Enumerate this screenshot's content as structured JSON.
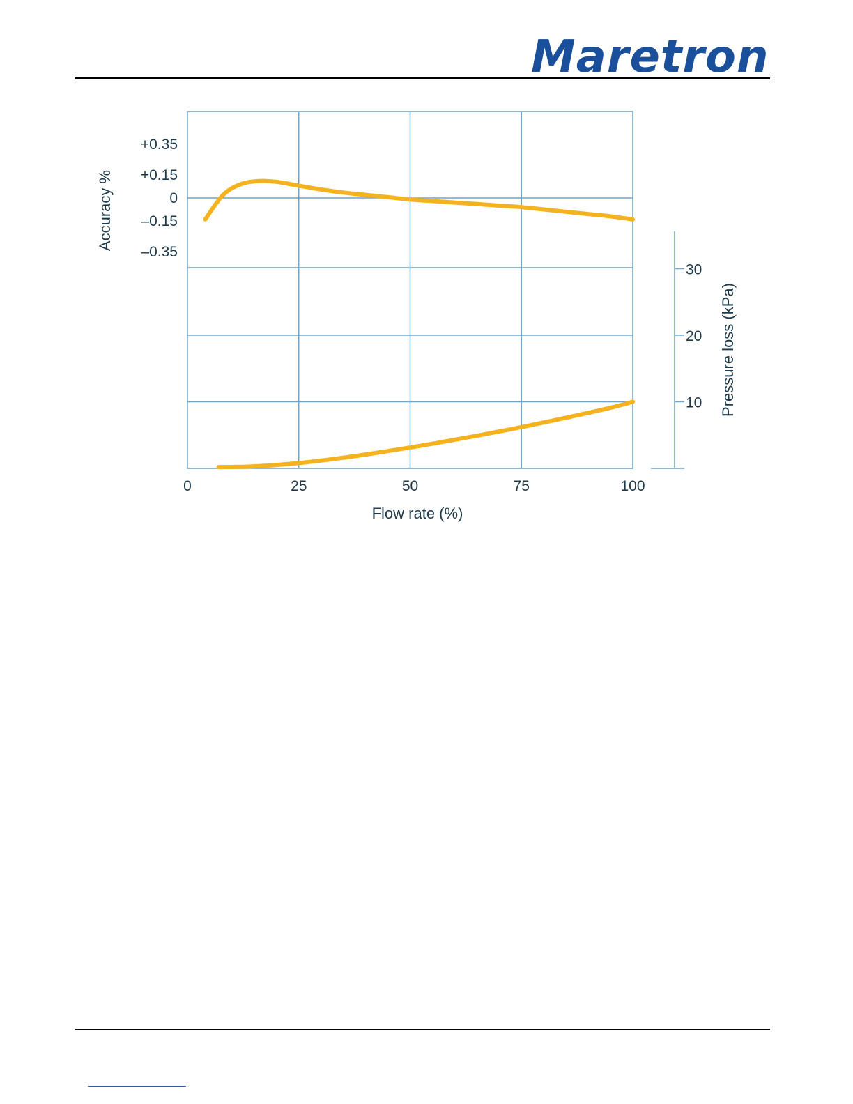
{
  "header": {
    "logo_text": "Maretron"
  },
  "chart_data": {
    "type": "line",
    "title": "",
    "xlabel": "Flow rate (%)",
    "xlim": [
      0,
      100
    ],
    "x_ticks": [
      0,
      25,
      50,
      75,
      100
    ],
    "x_tick_labels": [
      "0",
      "25",
      "50",
      "75",
      "100"
    ],
    "left_axis": {
      "label": "Accuracy %",
      "tick_values": [
        0.35,
        0.15,
        0,
        -0.15,
        -0.35
      ],
      "tick_labels": [
        "+0.35",
        "+0.15",
        "0",
        "–0.15",
        "–0.35"
      ]
    },
    "right_axis": {
      "label": "Pressure loss (kPa)",
      "tick_values": [
        30,
        20,
        10
      ],
      "tick_labels": [
        "30",
        "20",
        "10"
      ]
    },
    "grid": true,
    "legend": "none",
    "colors": {
      "series": "#f5b21f",
      "grid": "#6fa4c9",
      "text": "#1f3a4a",
      "logo": "#1a4f9c"
    },
    "series": [
      {
        "axis": "left",
        "x": [
          4,
          8,
          12,
          16,
          20,
          25,
          30,
          35,
          40,
          45,
          50,
          55,
          60,
          65,
          70,
          75,
          80,
          85,
          90,
          95,
          100
        ],
        "y": [
          -0.14,
          0.02,
          0.09,
          0.11,
          0.105,
          0.08,
          0.055,
          0.035,
          0.02,
          0.005,
          -0.01,
          -0.02,
          -0.03,
          -0.04,
          -0.05,
          -0.06,
          -0.075,
          -0.09,
          -0.105,
          -0.12,
          -0.14
        ]
      },
      {
        "axis": "right",
        "x": [
          7,
          15,
          25,
          35,
          45,
          55,
          65,
          75,
          85,
          95,
          100
        ],
        "y": [
          0.2,
          0.3,
          0.8,
          1.6,
          2.6,
          3.7,
          4.9,
          6.2,
          7.6,
          9.1,
          10
        ]
      }
    ]
  }
}
